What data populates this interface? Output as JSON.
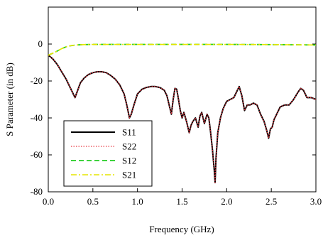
{
  "chart_data": {
    "type": "line",
    "title": "",
    "xlabel": "Frequency (GHz)",
    "ylabel": "S Parameter (in dB)",
    "xlim": [
      0.0,
      3.0
    ],
    "ylim": [
      -80,
      20
    ],
    "xticks": [
      0.0,
      0.5,
      1.0,
      1.5,
      2.0,
      2.5,
      3.0
    ],
    "xtick_labels": [
      "0.0",
      "0.5",
      "1.0",
      "1.5",
      "2.0",
      "2.5",
      "3.0"
    ],
    "yticks": [
      -80,
      -60,
      -40,
      -20,
      0
    ],
    "ytick_labels": [
      "-80",
      "-60",
      "-40",
      "-20",
      "0"
    ],
    "grid": false,
    "legend_position": "bottom-left",
    "series": [
      {
        "name": "S11",
        "color": "#000000",
        "dash": "solid",
        "x": [
          0.0,
          0.05,
          0.1,
          0.15,
          0.2,
          0.25,
          0.3,
          0.33,
          0.36,
          0.4,
          0.45,
          0.5,
          0.55,
          0.6,
          0.65,
          0.7,
          0.75,
          0.8,
          0.85,
          0.88,
          0.91,
          0.93,
          0.96,
          1.0,
          1.05,
          1.1,
          1.15,
          1.2,
          1.25,
          1.3,
          1.33,
          1.36,
          1.38,
          1.4,
          1.42,
          1.44,
          1.46,
          1.48,
          1.5,
          1.52,
          1.55,
          1.58,
          1.6,
          1.62,
          1.65,
          1.68,
          1.7,
          1.72,
          1.75,
          1.78,
          1.8,
          1.82,
          1.84,
          1.86,
          1.87,
          1.88,
          1.9,
          1.93,
          1.96,
          2.0,
          2.04,
          2.08,
          2.11,
          2.14,
          2.17,
          2.2,
          2.23,
          2.26,
          2.3,
          2.34,
          2.38,
          2.42,
          2.45,
          2.47,
          2.49,
          2.51,
          2.53,
          2.56,
          2.6,
          2.65,
          2.7,
          2.75,
          2.8,
          2.83,
          2.86,
          2.9,
          2.95,
          3.0
        ],
        "y": [
          -6,
          -8,
          -11,
          -15,
          -19,
          -24,
          -29,
          -25,
          -21,
          -18.5,
          -16.5,
          -15.5,
          -15,
          -15,
          -15.5,
          -17,
          -19,
          -22,
          -27,
          -33,
          -40,
          -38,
          -33,
          -27,
          -24.5,
          -23.5,
          -23,
          -23,
          -23.5,
          -25,
          -28,
          -34,
          -38,
          -30,
          -24,
          -24.5,
          -30,
          -36,
          -40,
          -37,
          -42,
          -48,
          -44,
          -42,
          -40,
          -45,
          -39,
          -37,
          -43,
          -38,
          -40,
          -48,
          -57,
          -68,
          -75,
          -62,
          -48,
          -40,
          -35,
          -31,
          -30,
          -29,
          -26,
          -23,
          -28,
          -36,
          -33,
          -33,
          -32,
          -33,
          -38,
          -42,
          -47,
          -51,
          -46,
          -45,
          -41,
          -38,
          -34,
          -33,
          -33,
          -30,
          -26,
          -24,
          -25,
          -29,
          -29,
          -30
        ]
      },
      {
        "name": "S22",
        "color": "#e8323c",
        "dash": "dotted",
        "x": [
          0.0,
          0.05,
          0.1,
          0.15,
          0.2,
          0.25,
          0.3,
          0.33,
          0.36,
          0.4,
          0.45,
          0.5,
          0.55,
          0.6,
          0.65,
          0.7,
          0.75,
          0.8,
          0.85,
          0.88,
          0.91,
          0.93,
          0.96,
          1.0,
          1.05,
          1.1,
          1.15,
          1.2,
          1.25,
          1.3,
          1.33,
          1.36,
          1.38,
          1.4,
          1.42,
          1.44,
          1.46,
          1.48,
          1.5,
          1.52,
          1.55,
          1.58,
          1.6,
          1.62,
          1.65,
          1.68,
          1.7,
          1.72,
          1.75,
          1.78,
          1.8,
          1.82,
          1.84,
          1.86,
          1.87,
          1.88,
          1.9,
          1.93,
          1.96,
          2.0,
          2.04,
          2.08,
          2.11,
          2.14,
          2.17,
          2.2,
          2.23,
          2.26,
          2.3,
          2.34,
          2.38,
          2.42,
          2.45,
          2.47,
          2.49,
          2.51,
          2.53,
          2.56,
          2.6,
          2.65,
          2.7,
          2.75,
          2.8,
          2.83,
          2.86,
          2.9,
          2.95,
          3.0
        ],
        "y": [
          -6,
          -8,
          -11,
          -15,
          -19,
          -24,
          -29,
          -25,
          -21,
          -18.5,
          -16.5,
          -15.5,
          -15,
          -15,
          -15.5,
          -17,
          -19,
          -22,
          -27,
          -33,
          -40,
          -38,
          -33,
          -27,
          -24.5,
          -23.5,
          -23,
          -23,
          -23.5,
          -25,
          -28,
          -34,
          -38,
          -30,
          -24,
          -24.5,
          -30,
          -36,
          -40,
          -37,
          -42,
          -48,
          -44,
          -42,
          -40,
          -45,
          -39,
          -37,
          -43,
          -38,
          -40,
          -48,
          -57,
          -68,
          -75,
          -62,
          -48,
          -40,
          -35,
          -31,
          -30,
          -29,
          -26,
          -23,
          -28,
          -36,
          -33,
          -33,
          -32,
          -33,
          -38,
          -42,
          -47,
          -51,
          -46,
          -45,
          -41,
          -38,
          -34,
          -33,
          -33,
          -30,
          -26,
          -24,
          -25,
          -29,
          -29,
          -30
        ]
      },
      {
        "name": "S12",
        "color": "#22cc22",
        "dash": "dashed",
        "x": [
          0.0,
          0.05,
          0.1,
          0.15,
          0.2,
          0.25,
          0.3,
          0.35,
          0.4,
          0.5,
          0.7,
          1.0,
          1.5,
          2.0,
          2.5,
          3.0
        ],
        "y": [
          -6,
          -5,
          -3.8,
          -2.5,
          -1.5,
          -0.9,
          -0.6,
          -0.4,
          -0.3,
          -0.2,
          -0.2,
          -0.2,
          -0.2,
          -0.2,
          -0.3,
          -0.5
        ]
      },
      {
        "name": "S21",
        "color": "#e6e600",
        "dash": "dashdot",
        "x": [
          0.0,
          0.05,
          0.1,
          0.15,
          0.2,
          0.25,
          0.3,
          0.35,
          0.4,
          0.5,
          0.7,
          1.0,
          1.5,
          2.0,
          2.5,
          3.0
        ],
        "y": [
          -6,
          -5,
          -3.8,
          -2.5,
          -1.5,
          -0.9,
          -0.6,
          -0.4,
          -0.3,
          -0.2,
          -0.2,
          -0.2,
          -0.2,
          -0.2,
          -0.3,
          -0.5
        ]
      }
    ]
  }
}
